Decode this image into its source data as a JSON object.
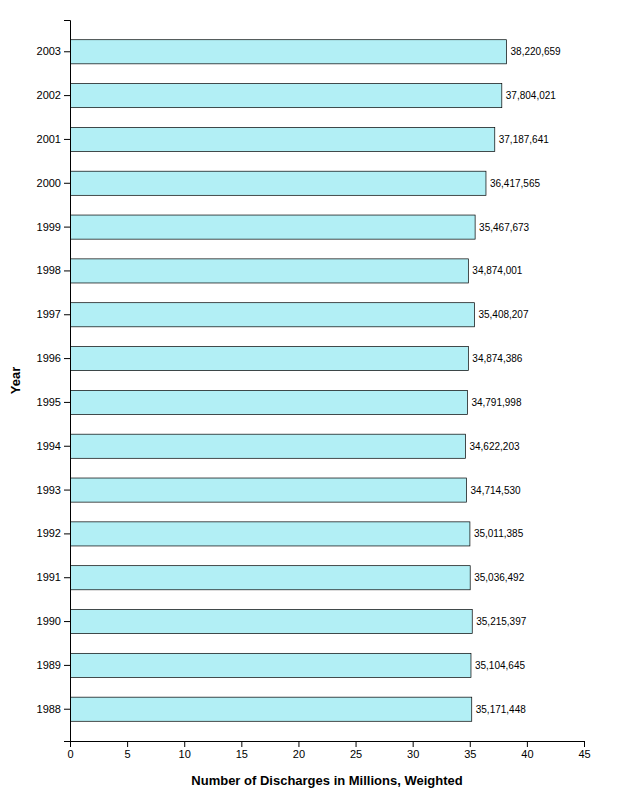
{
  "chart_data": {
    "type": "bar",
    "orientation": "horizontal",
    "categories": [
      "2003",
      "2002",
      "2001",
      "2000",
      "1999",
      "1998",
      "1997",
      "1996",
      "1995",
      "1994",
      "1993",
      "1992",
      "1991",
      "1990",
      "1989",
      "1988"
    ],
    "values": [
      38.220659,
      37.804021,
      37.187641,
      36.417565,
      35.467673,
      34.874001,
      35.408207,
      34.874386,
      34.791998,
      34.622203,
      34.71453,
      35.011385,
      35.036492,
      35.215397,
      35.104645,
      35.171448
    ],
    "value_labels": [
      "38,220,659",
      "37,804,021",
      "37,187,641",
      "36,417,565",
      "35,467,673",
      "34,874,001",
      "35,408,207",
      "34,874,386",
      "34,791,998",
      "34,622,203",
      "34,714,530",
      "35,011,385",
      "35,036,492",
      "35,215,397",
      "35,104,645",
      "35,171,448"
    ],
    "data_labels": true,
    "color": "#b2eff5",
    "xlabel": "Number of Discharges in Millions, Weighted",
    "ylabel": "Year",
    "xlim": [
      0,
      45
    ],
    "xticks": [
      0,
      5,
      10,
      15,
      20,
      25,
      30,
      35,
      40,
      45
    ],
    "grid": false
  }
}
